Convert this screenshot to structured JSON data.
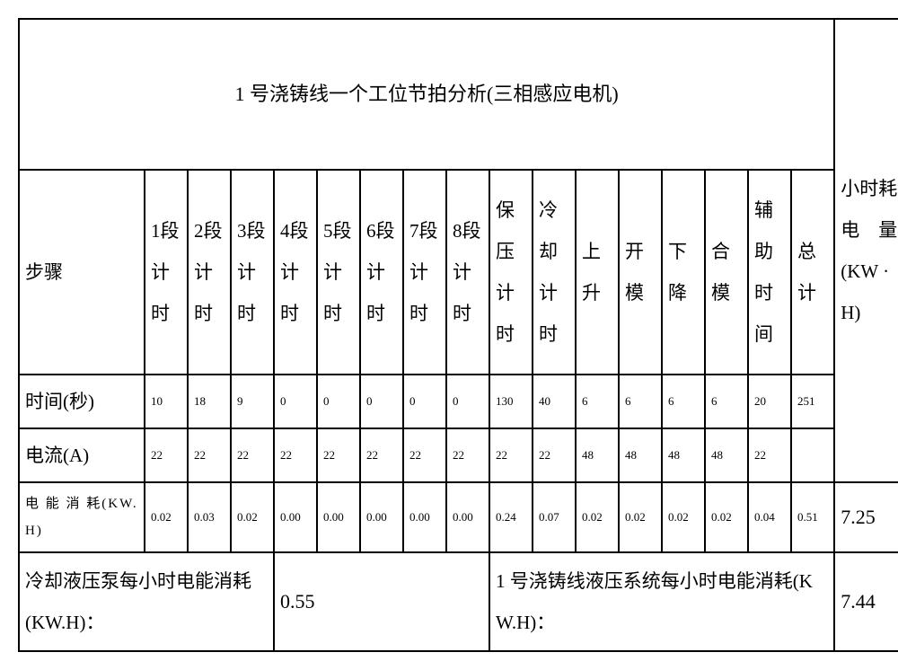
{
  "title": "1 号浇铸线一个工位节拍分析(三相感应电机)",
  "rightHeader": "小时耗电　量(KW ·H)",
  "labels": {
    "step": "步骤",
    "time": "时间(秒)",
    "current": "电流(A)",
    "energy": "电 能 消 耗(KW.H)"
  },
  "stepHeaders": [
    "1段计时",
    "2段计时",
    "3段计时",
    "4段计时",
    "5段计时",
    "6段计时",
    "7段计时",
    "8段计时",
    "保压计时",
    "冷却计时",
    "上升",
    "开模",
    "下降",
    "合模",
    "辅助时间",
    "总计"
  ],
  "timeRow": [
    "10",
    "18",
    "9",
    "0",
    "0",
    "0",
    "0",
    "0",
    "130",
    "40",
    "6",
    "6",
    "6",
    "6",
    "20",
    "251"
  ],
  "currentRow": [
    "22",
    "22",
    "22",
    "22",
    "22",
    "22",
    "22",
    "22",
    "22",
    "22",
    "48",
    "48",
    "48",
    "48",
    "22",
    ""
  ],
  "energyRow": [
    "0.02",
    "0.03",
    "0.02",
    "0.00",
    "0.00",
    "0.00",
    "0.00",
    "0.00",
    "0.24",
    "0.07",
    "0.02",
    "0.02",
    "0.02",
    "0.02",
    "0.04",
    "0.51"
  ],
  "summary": {
    "energyTotal": "7.25",
    "coolingLabel": "冷却液压泵每小时电能消耗(KW.H)：",
    "coolingValue": "0.55",
    "hydraulicLabel": "1 号浇铸线液压系统每小时电能消耗(KW.H)：",
    "hydraulicValue": "7.44"
  },
  "layout": {
    "labelColWidth": "140px",
    "stepColWidth": "48px",
    "rightColWidth": "85px"
  }
}
